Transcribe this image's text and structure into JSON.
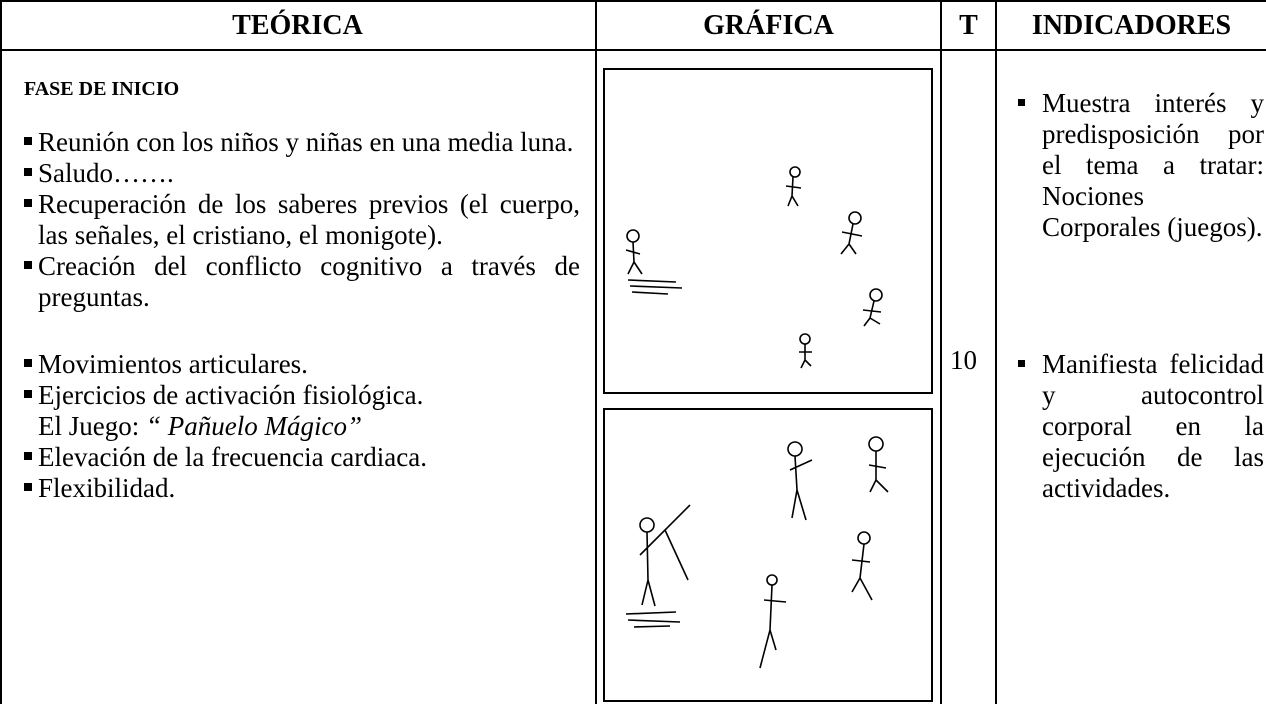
{
  "table": {
    "headers": [
      "TEÓRICA",
      "GRÁFICA",
      "T",
      "INDICADORES"
    ],
    "teorica": {
      "title": "FASE DE INICIO",
      "groups": [
        [
          "Reunión con los niños y niñas  en una media luna.",
          "Saludo…….",
          "Recuperación de los saberes previos (el cuerpo, las señales, el cristiano, el monigote).",
          "Creación del conflicto cognitivo a través de preguntas."
        ],
        [
          "Movimientos articulares.",
          "Ejercicios  de activación fisiológica.",
          "Elevación de la frecuencia cardiaca.",
          "Flexibilidad."
        ]
      ],
      "game": {
        "label": "El Juego:",
        "name": "“ Pañuelo Mágico”"
      }
    },
    "t": "10",
    "indicadores": [
      "Muestra interés y predisposición por el tema a tratar: Nociones Corporales (juegos).",
      "Manifiesta felicidad y autocontrol corporal en la ejecución de las actividades."
    ]
  }
}
